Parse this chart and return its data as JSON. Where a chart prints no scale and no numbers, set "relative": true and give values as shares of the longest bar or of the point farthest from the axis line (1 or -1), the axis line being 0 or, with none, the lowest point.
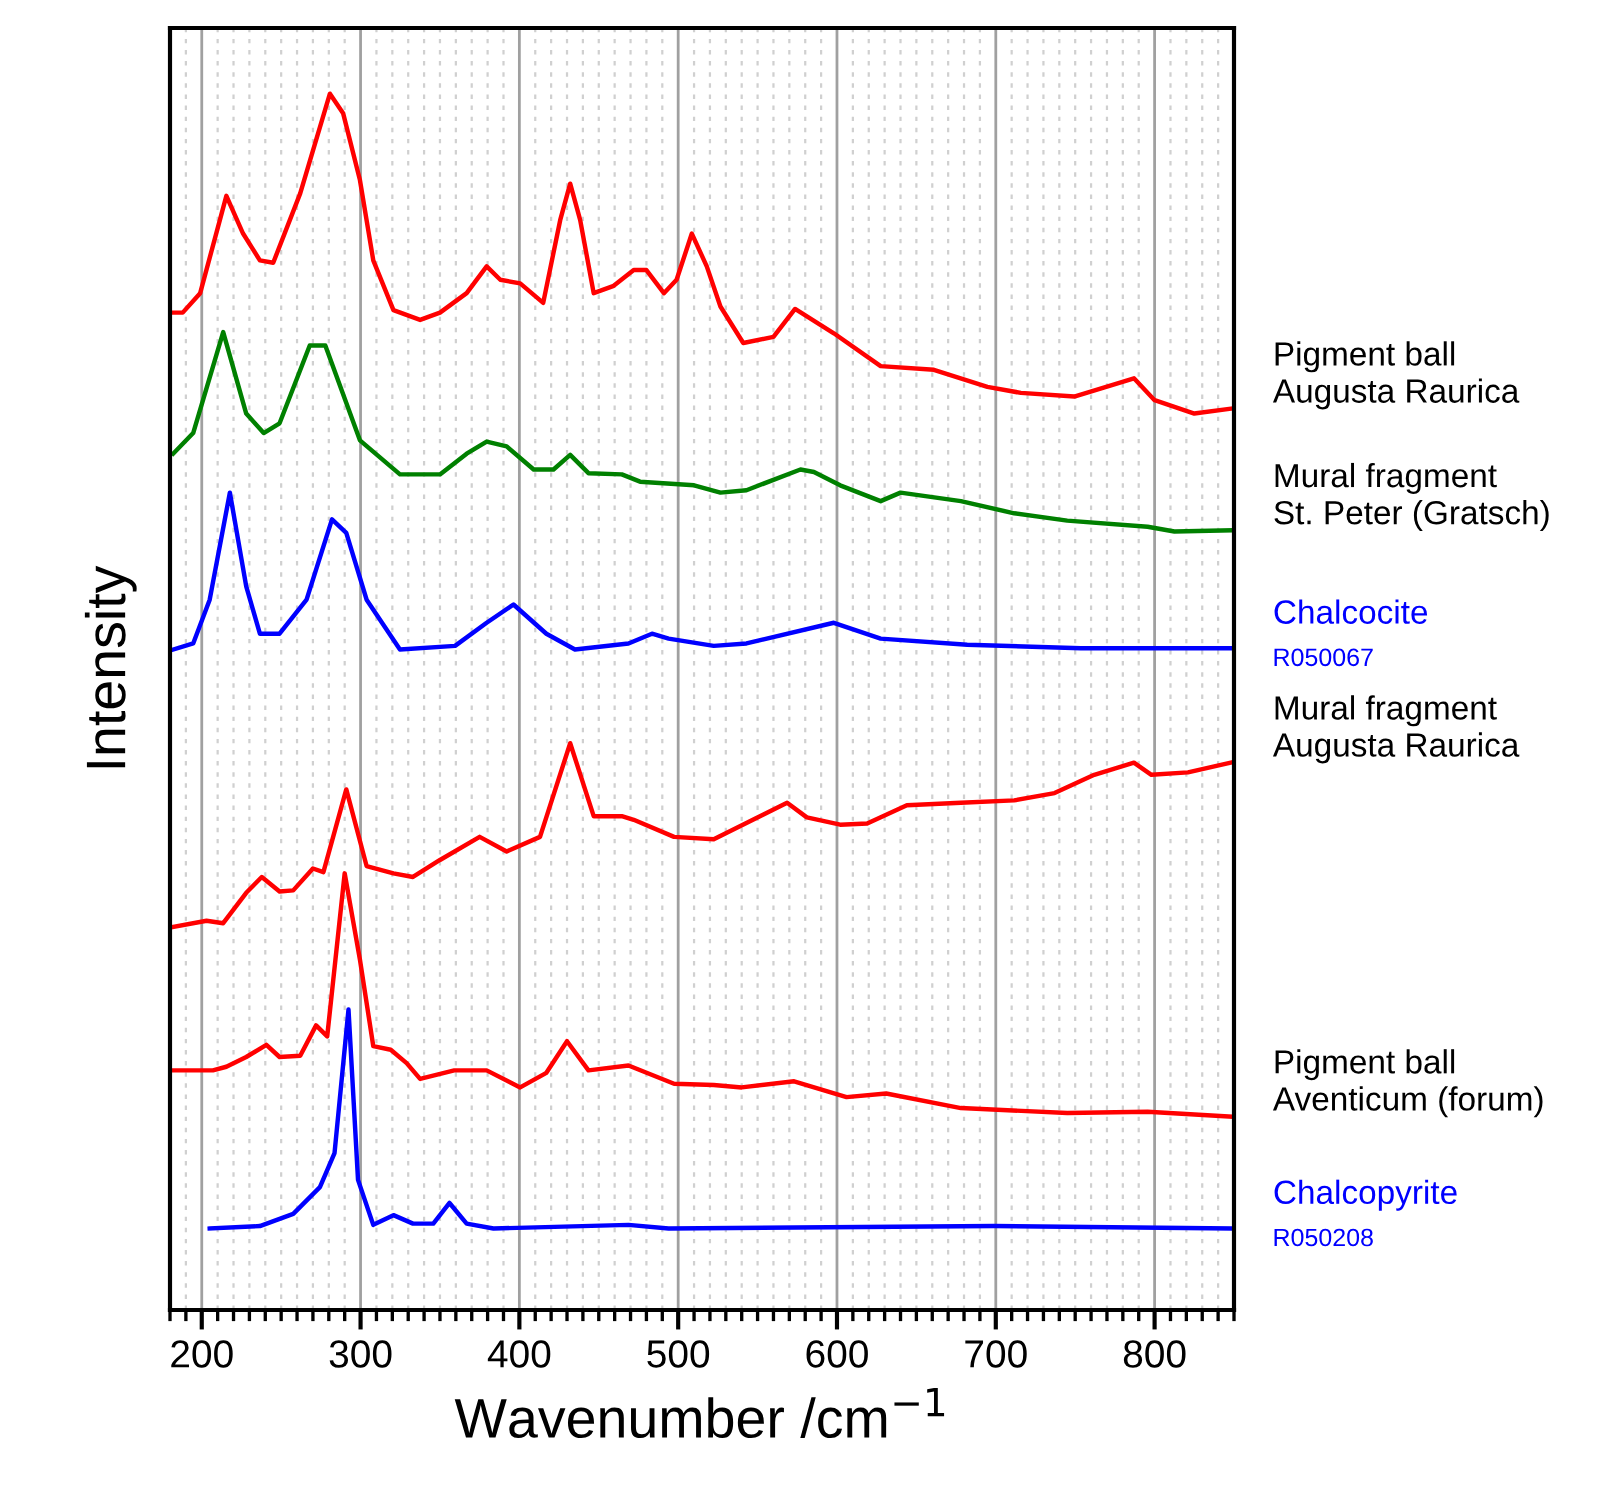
{
  "chart_data": {
    "type": "line",
    "relative": true,
    "xlabel": "Wavenumber /cm$^{−1}$",
    "ylabel": "Intensity",
    "xlim": [
      180,
      850
    ],
    "xticks": [
      200,
      300,
      400,
      500,
      600,
      700,
      800
    ],
    "grid": true,
    "tick_labels": "x",
    "legend": false,
    "marker": "none",
    "line_style": "solid",
    "series": [
      {
        "name": "Pigment ball\nAugusta Raurica",
        "color": "#ff0000",
        "x": [
          182,
          188,
          199,
          215.5,
          226,
          236.6,
          245,
          262,
          280.7,
          289,
          299.6,
          308,
          320.7,
          337.5,
          350,
          366.8,
          379.4,
          388,
          400.5,
          415,
          425.7,
          432,
          438.3,
          446.8,
          459.4,
          472,
          480,
          491,
          499,
          508.6,
          518,
          526.6,
          541,
          560,
          573.6,
          598,
          627.5,
          661,
          694.7,
          715.8,
          749.4,
          787,
          800,
          825,
          848
        ],
        "values": [
          0.82,
          0.82,
          0.836,
          0.916,
          0.885,
          0.863,
          0.861,
          0.918,
          1.0,
          0.984,
          0.929,
          0.863,
          0.822,
          0.814,
          0.82,
          0.836,
          0.858,
          0.847,
          0.844,
          0.828,
          0.896,
          0.926,
          0.896,
          0.836,
          0.842,
          0.855,
          0.855,
          0.836,
          0.847,
          0.885,
          0.858,
          0.825,
          0.795,
          0.8,
          0.823,
          0.803,
          0.776,
          0.773,
          0.759,
          0.754,
          0.751,
          0.766,
          0.748,
          0.737,
          0.741
        ]
      },
      {
        "name": "Mural fragment\nSt. Peter (Gratsch)",
        "color": "#008000",
        "x": [
          182,
          194.6,
          213.5,
          228,
          239,
          249,
          268,
          277.8,
          299.6,
          324.8,
          350,
          366.8,
          379.4,
          392,
          409,
          421.5,
          432,
          443.5,
          464.5,
          476,
          510,
          526.6,
          543,
          577,
          585.5,
          602,
          627.5,
          640,
          678,
          711.6,
          745,
          795.6,
          812.5,
          848
        ],
        "values": [
          0.704,
          0.721,
          0.804,
          0.737,
          0.721,
          0.729,
          0.793,
          0.793,
          0.715,
          0.687,
          0.687,
          0.704,
          0.714,
          0.71,
          0.691,
          0.691,
          0.703,
          0.688,
          0.687,
          0.681,
          0.678,
          0.672,
          0.674,
          0.691,
          0.689,
          0.678,
          0.665,
          0.672,
          0.665,
          0.655,
          0.649,
          0.644,
          0.64,
          0.641
        ]
      },
      {
        "name": "Chalcocite",
        "color": "#0000ff",
        "x": [
          182,
          194.6,
          205,
          217.7,
          228,
          236.6,
          249,
          266,
          282,
          291,
          303.8,
          324.8,
          359.5,
          379.4,
          396.3,
          417,
          435,
          468.7,
          483.5,
          494,
          522.4,
          543,
          598,
          627.5,
          682,
          753.6,
          848
        ],
        "values": [
          0.543,
          0.548,
          0.584,
          0.672,
          0.595,
          0.556,
          0.556,
          0.584,
          0.65,
          0.639,
          0.584,
          0.543,
          0.546,
          0.565,
          0.58,
          0.556,
          0.543,
          0.548,
          0.556,
          0.552,
          0.546,
          0.548,
          0.565,
          0.552,
          0.547,
          0.544,
          0.544
        ]
      },
      {
        "name": "Mural fragment\nAugusta Raurica",
        "color": "#ff0000",
        "x": [
          182,
          203,
          213.5,
          228,
          237.8,
          249,
          257.6,
          270,
          276.6,
          291,
          303.8,
          320.7,
          333,
          350,
          375,
          392,
          413,
          432,
          446.8,
          464.5,
          472,
          497.4,
          522.4,
          568.6,
          581,
          602,
          619,
          644,
          678,
          711.6,
          737,
          762,
          787,
          798,
          821,
          848
        ],
        "values": [
          0.315,
          0.32,
          0.318,
          0.343,
          0.356,
          0.344,
          0.345,
          0.363,
          0.36,
          0.428,
          0.365,
          0.359,
          0.356,
          0.37,
          0.389,
          0.377,
          0.389,
          0.466,
          0.406,
          0.406,
          0.403,
          0.389,
          0.387,
          0.417,
          0.405,
          0.399,
          0.4,
          0.415,
          0.417,
          0.419,
          0.425,
          0.44,
          0.45,
          0.44,
          0.442,
          0.45
        ]
      },
      {
        "name": "Pigment ball\nAventicum (forum)",
        "color": "#ff0000",
        "x": [
          182,
          207,
          215.5,
          228,
          240.7,
          249,
          262,
          272,
          279,
          290,
          299.6,
          308,
          319,
          329,
          337.5,
          359,
          379.4,
          400.5,
          417,
          430,
          443.5,
          468.7,
          497.4,
          522.4,
          540,
          573,
          606,
          631,
          678,
          745,
          795.6,
          848
        ],
        "values": [
          0.197,
          0.197,
          0.2,
          0.208,
          0.218,
          0.208,
          0.209,
          0.234,
          0.225,
          0.359,
          0.288,
          0.217,
          0.214,
          0.203,
          0.19,
          0.197,
          0.197,
          0.183,
          0.195,
          0.221,
          0.197,
          0.201,
          0.186,
          0.185,
          0.183,
          0.188,
          0.175,
          0.178,
          0.166,
          0.162,
          0.163,
          0.159
        ]
      },
      {
        "name": "Chalcopyrite",
        "color": "#0000ff",
        "x": [
          205,
          236.6,
          257.6,
          274.4,
          283.6,
          292.4,
          298.4,
          308,
          320.7,
          333,
          345.8,
          356,
          366.8,
          383.7,
          468.7,
          494,
          699,
          848
        ],
        "values": [
          0.067,
          0.069,
          0.079,
          0.101,
          0.129,
          0.247,
          0.107,
          0.07,
          0.078,
          0.071,
          0.071,
          0.088,
          0.071,
          0.067,
          0.07,
          0.067,
          0.069,
          0.067
        ]
      }
    ],
    "annotations": [
      {
        "text": "R050067",
        "x": 848,
        "y": 0.544
      },
      {
        "text": "R050208",
        "x": 848,
        "y": 0.067
      }
    ]
  }
}
